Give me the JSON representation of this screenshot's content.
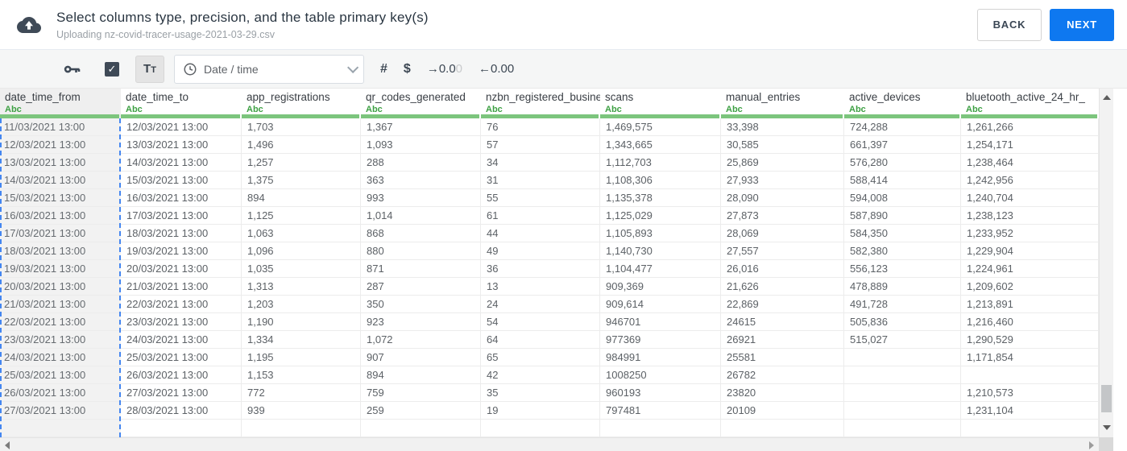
{
  "header": {
    "title": "Select columns type, precision, and the table primary key(s)",
    "subtitle": "Uploading nz-covid-tracer-usage-2021-03-29.csv",
    "back_label": "BACK",
    "next_label": "NEXT"
  },
  "toolbar": {
    "primary_key_checkbox_checked": true,
    "check_glyph": "✓",
    "text_type_button": {
      "first": "T",
      "second": "T"
    },
    "type_dropdown_value": "Date / time",
    "number_button": "#",
    "currency_button": "$",
    "precision_right": {
      "arrow": "→",
      "value": "0.0",
      "faded": "0"
    },
    "precision_left": {
      "arrow": "←",
      "value": "0.00",
      "faded": ""
    }
  },
  "table": {
    "columns": [
      {
        "name": "date_time_from",
        "type_label": "Abc",
        "selected": true
      },
      {
        "name": "date_time_to",
        "type_label": "Abc",
        "selected": false
      },
      {
        "name": "app_registrations",
        "type_label": "Abc",
        "selected": false
      },
      {
        "name": "qr_codes_generated",
        "type_label": "Abc",
        "selected": false
      },
      {
        "name": "nzbn_registered_busine",
        "type_label": "Abc",
        "selected": false
      },
      {
        "name": "scans",
        "type_label": "Abc",
        "selected": false
      },
      {
        "name": "manual_entries",
        "type_label": "Abc",
        "selected": false
      },
      {
        "name": "active_devices",
        "type_label": "Abc",
        "selected": false
      },
      {
        "name": "bluetooth_active_24_hr_",
        "type_label": "Abc",
        "selected": false
      }
    ],
    "rows": [
      [
        "11/03/2021 13:00",
        "12/03/2021 13:00",
        "1,703",
        "1,367",
        "76",
        "1,469,575",
        "33,398",
        "724,288",
        "1,261,266"
      ],
      [
        "12/03/2021 13:00",
        "13/03/2021 13:00",
        "1,496",
        "1,093",
        "57",
        "1,343,665",
        "30,585",
        "661,397",
        "1,254,171"
      ],
      [
        "13/03/2021 13:00",
        "14/03/2021 13:00",
        "1,257",
        "288",
        "34",
        "1,112,703",
        "25,869",
        "576,280",
        "1,238,464"
      ],
      [
        "14/03/2021 13:00",
        "15/03/2021 13:00",
        "1,375",
        "363",
        "31",
        "1,108,306",
        "27,933",
        "588,414",
        "1,242,956"
      ],
      [
        "15/03/2021 13:00",
        "16/03/2021 13:00",
        "894",
        "993",
        "55",
        "1,135,378",
        "28,090",
        "594,008",
        "1,240,704"
      ],
      [
        "16/03/2021 13:00",
        "17/03/2021 13:00",
        "1,125",
        "1,014",
        "61",
        "1,125,029",
        "27,873",
        "587,890",
        "1,238,123"
      ],
      [
        "17/03/2021 13:00",
        "18/03/2021 13:00",
        "1,063",
        "868",
        "44",
        "1,105,893",
        "28,069",
        "584,350",
        "1,233,952"
      ],
      [
        "18/03/2021 13:00",
        "19/03/2021 13:00",
        "1,096",
        "880",
        "49",
        "1,140,730",
        "27,557",
        "582,380",
        "1,229,904"
      ],
      [
        "19/03/2021 13:00",
        "20/03/2021 13:00",
        "1,035",
        "871",
        "36",
        "1,104,477",
        "26,016",
        "556,123",
        "1,224,961"
      ],
      [
        "20/03/2021 13:00",
        "21/03/2021 13:00",
        "1,313",
        "287",
        "13",
        "909,369",
        "21,626",
        "478,889",
        "1,209,602"
      ],
      [
        "21/03/2021 13:00",
        "22/03/2021 13:00",
        "1,203",
        "350",
        "24",
        "909,614",
        "22,869",
        "491,728",
        "1,213,891"
      ],
      [
        "22/03/2021 13:00",
        "23/03/2021 13:00",
        "1,190",
        "923",
        "54",
        "946701",
        "24615",
        "505,836",
        "1,216,460"
      ],
      [
        "23/03/2021 13:00",
        "24/03/2021 13:00",
        "1,334",
        "1,072",
        "64",
        "977369",
        "26921",
        "515,027",
        "1,290,529"
      ],
      [
        "24/03/2021 13:00",
        "25/03/2021 13:00",
        "1,195",
        "907",
        "65",
        "984991",
        "25581",
        "",
        "1,171,854"
      ],
      [
        "25/03/2021 13:00",
        "26/03/2021 13:00",
        "1,153",
        "894",
        "42",
        "1008250",
        "26782",
        "",
        ""
      ],
      [
        "26/03/2021 13:00",
        "27/03/2021 13:00",
        "772",
        "759",
        "35",
        "960193",
        "23820",
        "",
        "1,210,573"
      ],
      [
        "27/03/2021 13:00",
        "28/03/2021 13:00",
        "939",
        "259",
        "19",
        "797481",
        "20109",
        "",
        "1,231,104"
      ]
    ]
  },
  "colors": {
    "accent_blue": "#0e78f0",
    "selection_blue": "#4486f0",
    "type_green": "#3da043",
    "header_underline_green": "#7cc57d"
  }
}
